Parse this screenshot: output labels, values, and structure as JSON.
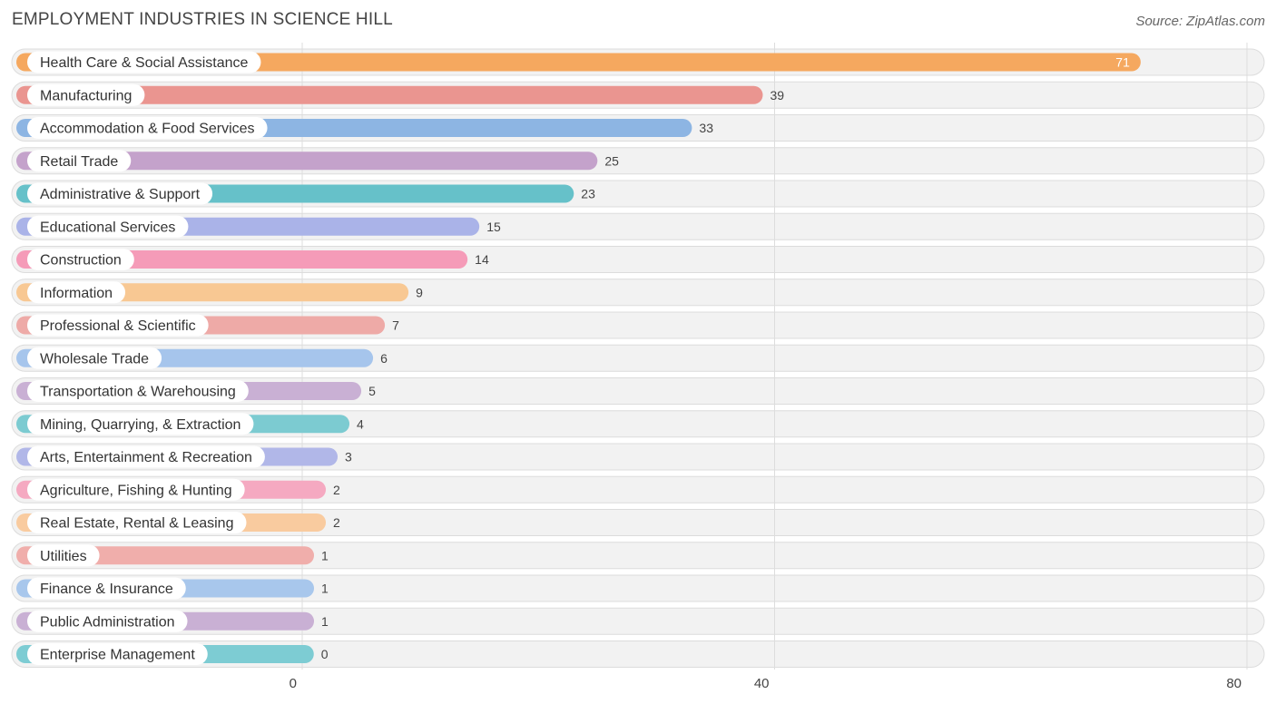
{
  "header": {
    "title": "EMPLOYMENT INDUSTRIES IN SCIENCE HILL",
    "source": "Source: ZipAtlas.com"
  },
  "chart_data": {
    "type": "bar",
    "orientation": "horizontal",
    "title": "EMPLOYMENT INDUSTRIES IN SCIENCE HILL",
    "xlabel": "",
    "ylabel": "",
    "xlim": [
      0,
      80
    ],
    "x_ticks": [
      0,
      40,
      80
    ],
    "grid": true,
    "categories": [
      "Health Care & Social Assistance",
      "Manufacturing",
      "Accommodation & Food Services",
      "Retail Trade",
      "Administrative & Support",
      "Educational Services",
      "Construction",
      "Information",
      "Professional & Scientific",
      "Wholesale Trade",
      "Transportation & Warehousing",
      "Mining, Quarrying, & Extraction",
      "Arts, Entertainment & Recreation",
      "Agriculture, Fishing & Hunting",
      "Real Estate, Rental & Leasing",
      "Utilities",
      "Finance & Insurance",
      "Public Administration",
      "Enterprise Management"
    ],
    "values": [
      71,
      39,
      33,
      25,
      23,
      15,
      14,
      9,
      7,
      6,
      5,
      4,
      3,
      2,
      2,
      1,
      1,
      1,
      0
    ],
    "colors": [
      "#f5a85f",
      "#ea9590",
      "#8db5e3",
      "#c4a2cb",
      "#66c1c9",
      "#aab3e8",
      "#f59bb8",
      "#f8c893",
      "#eeaaa7",
      "#a6c5ec",
      "#c9b0d4",
      "#7ccbd1",
      "#b1b7e8",
      "#f5a9c1",
      "#f9cb9f",
      "#f0aeab",
      "#a8c7ec",
      "#c9b0d4",
      "#7dccd3"
    ]
  }
}
